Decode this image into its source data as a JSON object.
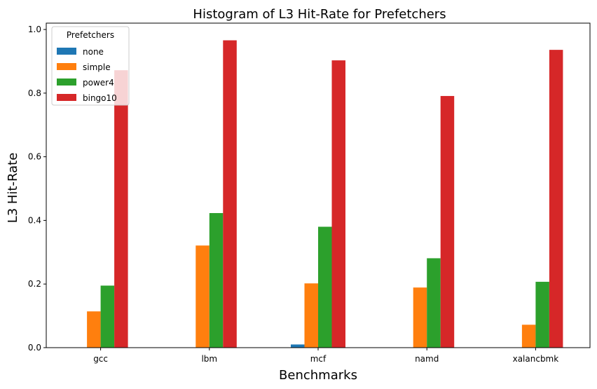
{
  "chart_data": {
    "type": "bar",
    "title": "Histogram of L3 Hit-Rate for Prefetchers",
    "xlabel": "Benchmarks",
    "ylabel": "L3 Hit-Rate",
    "ylim": [
      0,
      1.02
    ],
    "yticks": [
      "0.0",
      "0.2",
      "0.4",
      "0.6",
      "0.8",
      "1.0"
    ],
    "categories": [
      "gcc",
      "lbm",
      "mcf",
      "namd",
      "xalancbmk"
    ],
    "legend_title": "Prefetchers",
    "legend_position": "top-left",
    "grid": false,
    "series": [
      {
        "name": "none",
        "color": "#1f77b4",
        "values": [
          0.0,
          0.0,
          0.01,
          0.0,
          0.0
        ]
      },
      {
        "name": "simple",
        "color": "#ff7f0e",
        "values": [
          0.114,
          0.321,
          0.202,
          0.189,
          0.072
        ]
      },
      {
        "name": "power4",
        "color": "#2ca02c",
        "values": [
          0.195,
          0.423,
          0.38,
          0.281,
          0.207
        ]
      },
      {
        "name": "bingo10",
        "color": "#d62728",
        "values": [
          0.872,
          0.966,
          0.903,
          0.791,
          0.936
        ]
      }
    ]
  }
}
